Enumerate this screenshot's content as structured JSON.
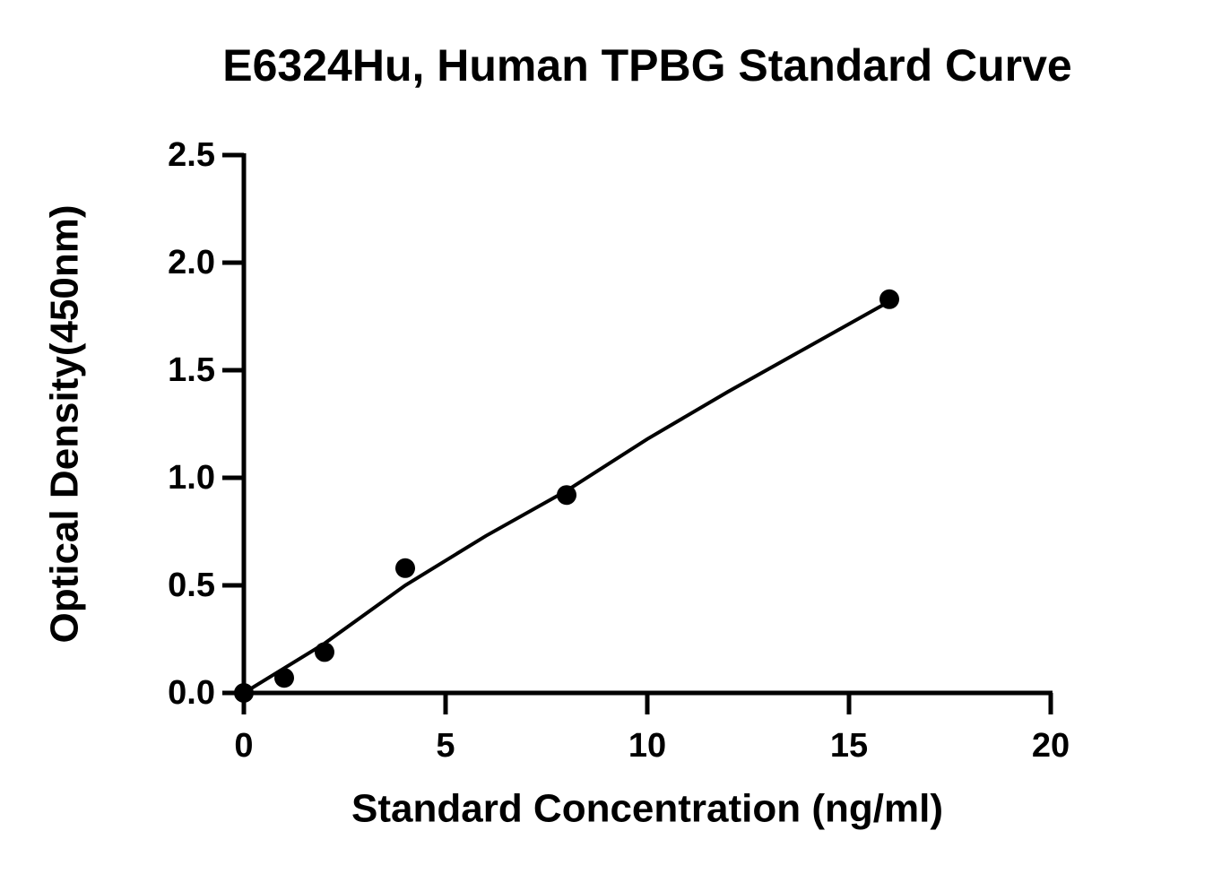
{
  "chart_data": {
    "type": "scatter",
    "title": "E6324Hu, Human TPBG Standard Curve",
    "x_label": "Standard Concentration (ng/ml)",
    "y_label": "Optical Density(450nm)",
    "xlim": [
      0,
      20
    ],
    "ylim": [
      0,
      2.5
    ],
    "xticks": [
      0,
      5,
      10,
      15,
      20
    ],
    "yticks": [
      {
        "value": 0,
        "label": "0.0"
      },
      0.5,
      {
        "value": 1,
        "label": "1.0"
      },
      1.5,
      {
        "value": 2,
        "label": "2.0"
      },
      2.5
    ],
    "series": [
      {
        "type": "scatter",
        "color": "#000000",
        "x": [
          0,
          1,
          2,
          4,
          8,
          16
        ],
        "values": [
          0,
          0.07,
          0.19,
          0.58,
          0.92,
          1.83
        ]
      },
      {
        "type": "line",
        "color": "#000000",
        "x": [
          0,
          2,
          4,
          6,
          8,
          10,
          12,
          14,
          16
        ],
        "values": [
          0,
          0.23,
          0.5,
          0.73,
          0.94,
          1.18,
          1.4,
          1.61,
          1.82
        ]
      }
    ]
  }
}
